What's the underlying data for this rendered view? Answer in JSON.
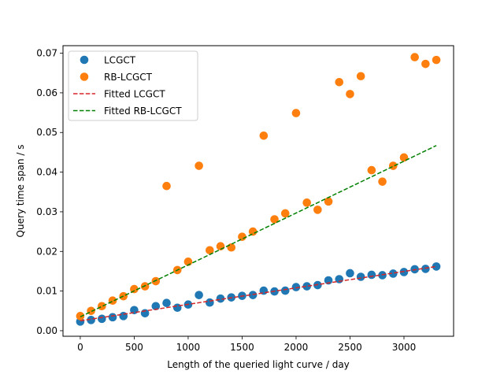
{
  "chart_data": {
    "type": "scatter",
    "title": "",
    "xlabel": "Length of the queried light curve / day",
    "ylabel": "Query time span / s",
    "xlim": [
      -160,
      3460
    ],
    "ylim": [
      -0.0014,
      0.0719
    ],
    "xticks": [
      0,
      500,
      1000,
      1500,
      2000,
      2500,
      3000
    ],
    "xtick_labels": [
      "0",
      "500",
      "1000",
      "1500",
      "2000",
      "2500",
      "3000"
    ],
    "yticks": [
      0.0,
      0.01,
      0.02,
      0.03,
      0.04,
      0.05,
      0.06,
      0.07
    ],
    "ytick_labels": [
      "0.00",
      "0.01",
      "0.02",
      "0.03",
      "0.04",
      "0.05",
      "0.06",
      "0.07"
    ],
    "grid": false,
    "legend_position": "top-left",
    "series": [
      {
        "name": "LCGCT",
        "kind": "scatter",
        "color": "#1f77b4",
        "x": [
          0,
          100,
          200,
          300,
          400,
          500,
          600,
          700,
          800,
          900,
          1000,
          1100,
          1200,
          1300,
          1400,
          1500,
          1600,
          1700,
          1800,
          1900,
          2000,
          2100,
          2200,
          2300,
          2400,
          2500,
          2600,
          2700,
          2800,
          2900,
          3000,
          3100,
          3200,
          3300
        ],
        "y": [
          0.0023,
          0.0027,
          0.003,
          0.0034,
          0.0037,
          0.0052,
          0.0044,
          0.0062,
          0.007,
          0.0058,
          0.0066,
          0.009,
          0.0071,
          0.0081,
          0.0084,
          0.0088,
          0.009,
          0.0101,
          0.0099,
          0.0101,
          0.011,
          0.0112,
          0.0115,
          0.0127,
          0.013,
          0.0145,
          0.0136,
          0.0141,
          0.014,
          0.0144,
          0.0148,
          0.0155,
          0.0156,
          0.0162
        ]
      },
      {
        "name": "RB-LCGCT",
        "kind": "scatter",
        "color": "#ff7f0e",
        "x": [
          0,
          100,
          200,
          300,
          400,
          500,
          600,
          700,
          800,
          900,
          1000,
          1100,
          1200,
          1300,
          1400,
          1500,
          1600,
          1700,
          1800,
          1900,
          2000,
          2100,
          2200,
          2300,
          2400,
          2500,
          2600,
          2700,
          2800,
          2900,
          3000,
          3100,
          3200,
          3300
        ],
        "y": [
          0.0037,
          0.005,
          0.0062,
          0.0076,
          0.0087,
          0.0105,
          0.0112,
          0.0125,
          0.0365,
          0.0153,
          0.0174,
          0.0416,
          0.0203,
          0.0213,
          0.021,
          0.0237,
          0.025,
          0.0492,
          0.0281,
          0.0296,
          0.0549,
          0.0323,
          0.0305,
          0.0326,
          0.0627,
          0.0597,
          0.0642,
          0.0405,
          0.0376,
          0.0416,
          0.0437,
          0.069,
          0.0673,
          0.0683
        ]
      },
      {
        "name": "Fitted LCGCT",
        "kind": "line",
        "style": "dashed",
        "color": "#d62728",
        "x": [
          0,
          3300
        ],
        "y": [
          0.0025,
          0.0162
        ]
      },
      {
        "name": "Fitted RB-LCGCT",
        "kind": "line",
        "style": "dashed",
        "color": "#008000",
        "x": [
          0,
          3300
        ],
        "y": [
          0.0035,
          0.0467
        ]
      }
    ]
  }
}
